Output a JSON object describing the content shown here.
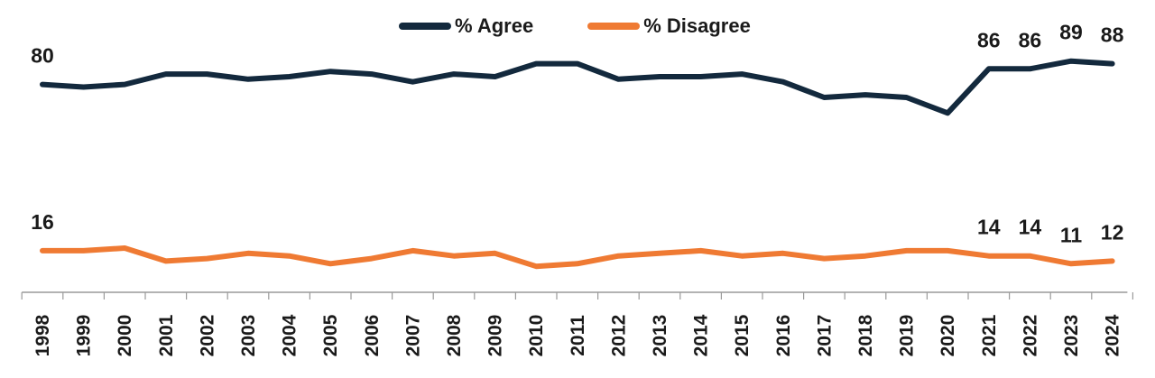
{
  "chart_data": {
    "type": "line",
    "title": "",
    "xlabel": "",
    "ylabel": "",
    "ylim": [
      0,
      100
    ],
    "grid": false,
    "legend_position": "top-center",
    "x": [
      "1998",
      "1999",
      "2000",
      "2001",
      "2002",
      "2003",
      "2004",
      "2005",
      "2006",
      "2007",
      "2008",
      "2009",
      "2010",
      "2011",
      "2012",
      "2013",
      "2014",
      "2015",
      "2016",
      "2017",
      "2018",
      "2019",
      "2020",
      "2021",
      "2022",
      "2023",
      "2024"
    ],
    "series": [
      {
        "name": "% Agree",
        "color": "#13293d",
        "values": [
          80,
          79,
          80,
          84,
          84,
          82,
          83,
          85,
          84,
          81,
          84,
          83,
          88,
          88,
          82,
          83,
          83,
          84,
          81,
          75,
          76,
          75,
          69,
          86,
          86,
          89,
          88
        ],
        "labels": [
          {
            "index": 0,
            "text": "80"
          },
          {
            "index": 23,
            "text": "86"
          },
          {
            "index": 24,
            "text": "86"
          },
          {
            "index": 25,
            "text": "89"
          },
          {
            "index": 26,
            "text": "88"
          }
        ]
      },
      {
        "name": "% Disagree",
        "color": "#ef7a33",
        "values": [
          16,
          16,
          17,
          12,
          13,
          15,
          14,
          11,
          13,
          16,
          14,
          15,
          10,
          11,
          14,
          15,
          16,
          14,
          15,
          13,
          14,
          16,
          16,
          14,
          14,
          11,
          12
        ],
        "labels": [
          {
            "index": 0,
            "text": "16"
          },
          {
            "index": 23,
            "text": "14"
          },
          {
            "index": 24,
            "text": "14"
          },
          {
            "index": 25,
            "text": "11"
          },
          {
            "index": 26,
            "text": "12"
          }
        ]
      }
    ]
  }
}
